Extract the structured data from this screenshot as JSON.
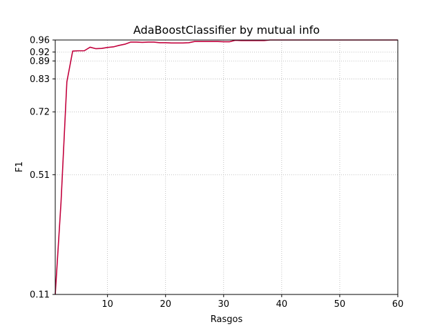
{
  "chart_data": {
    "type": "line",
    "title": "AdaBoostClassifier by mutual info",
    "xlabel": "Rasgos",
    "ylabel": "F1",
    "xlim": [
      1,
      60
    ],
    "ylim": [
      0.11,
      0.96
    ],
    "xticks": [
      10,
      20,
      30,
      40,
      50,
      60
    ],
    "yticks": [
      0.11,
      0.51,
      0.72,
      0.83,
      0.89,
      0.92,
      0.96
    ],
    "grid": true,
    "series": [
      {
        "name": "F1",
        "color": "#c2003c",
        "x": [
          1,
          2,
          3,
          4,
          5,
          6,
          7,
          8,
          9,
          10,
          11,
          12,
          13,
          14,
          15,
          16,
          17,
          18,
          19,
          20,
          21,
          22,
          23,
          24,
          25,
          26,
          27,
          28,
          29,
          30,
          31,
          32,
          33,
          34,
          35,
          36,
          37,
          38,
          39,
          40,
          41,
          42,
          43,
          44,
          45,
          46,
          47,
          48,
          49,
          50,
          51,
          52,
          53,
          54,
          55,
          56,
          57,
          58,
          59,
          60
        ],
        "y": [
          0.11,
          0.42,
          0.82,
          0.923,
          0.924,
          0.924,
          0.936,
          0.931,
          0.932,
          0.935,
          0.937,
          0.942,
          0.946,
          0.953,
          0.953,
          0.952,
          0.953,
          0.953,
          0.951,
          0.951,
          0.95,
          0.95,
          0.95,
          0.951,
          0.955,
          0.955,
          0.955,
          0.955,
          0.955,
          0.954,
          0.954,
          0.959,
          0.958,
          0.958,
          0.958,
          0.958,
          0.958,
          0.96,
          0.96,
          0.96,
          0.96,
          0.96,
          0.96,
          0.96,
          0.96,
          0.96,
          0.96,
          0.96,
          0.96,
          0.96,
          0.96,
          0.96,
          0.96,
          0.96,
          0.96,
          0.96,
          0.96,
          0.96,
          0.96,
          0.96
        ]
      }
    ]
  }
}
